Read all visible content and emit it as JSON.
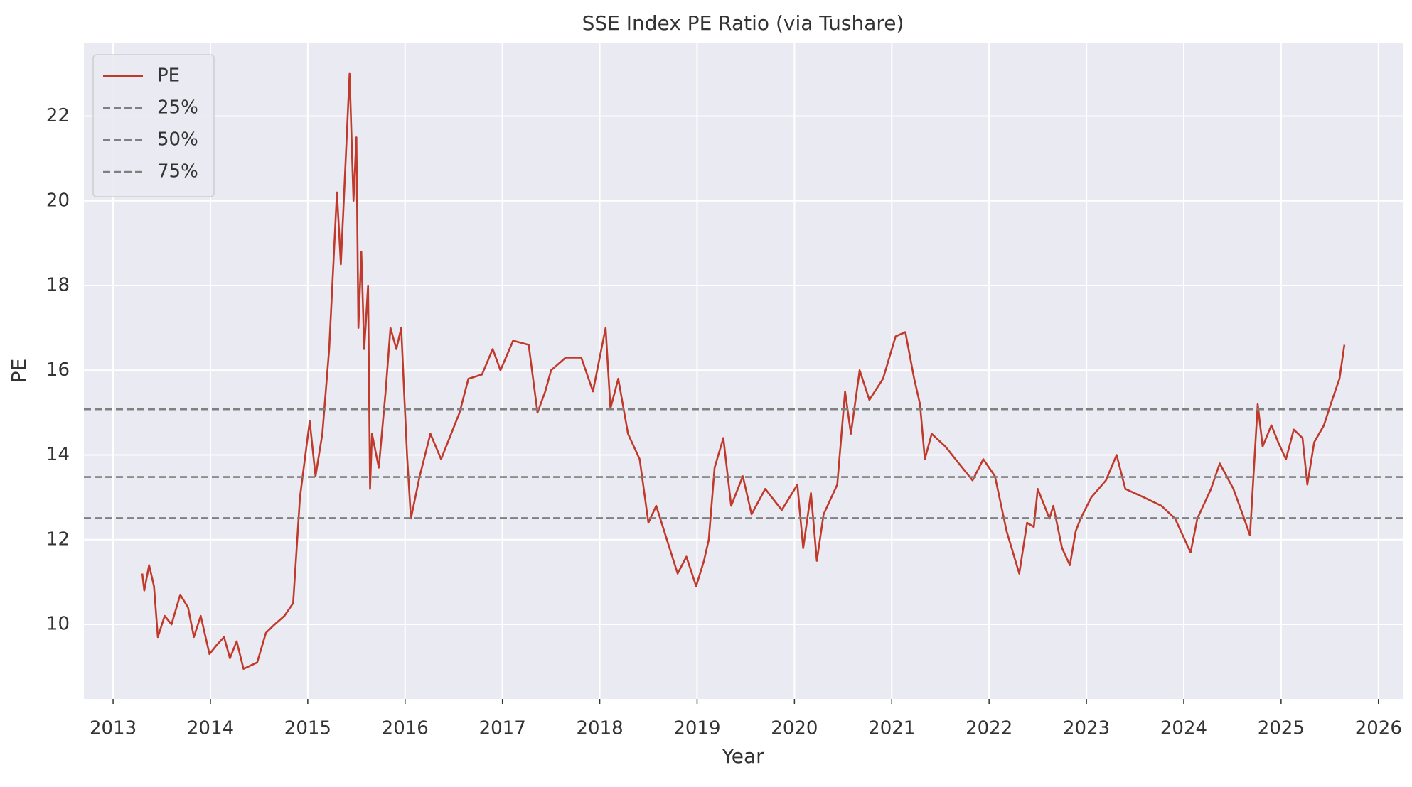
{
  "chart_data": {
    "type": "line",
    "title": "SSE Index PE Ratio (via Tushare)",
    "x_label": "Year",
    "y_label": "PE",
    "x": [
      2013.3,
      2013.32,
      2013.37,
      2013.42,
      2013.46,
      2013.53,
      2013.6,
      2013.69,
      2013.77,
      2013.83,
      2013.9,
      2013.99,
      2014.06,
      2014.14,
      2014.2,
      2014.27,
      2014.34,
      2014.48,
      2014.57,
      2014.66,
      2014.76,
      2014.85,
      2014.92,
      2015.02,
      2015.08,
      2015.15,
      2015.22,
      2015.3,
      2015.34,
      2015.39,
      2015.43,
      2015.47,
      2015.5,
      2015.52,
      2015.55,
      2015.58,
      2015.62,
      2015.64,
      2015.66,
      2015.73,
      2015.8,
      2015.85,
      2015.91,
      2015.96,
      2016.02,
      2016.06,
      2016.15,
      2016.26,
      2016.37,
      2016.56,
      2016.65,
      2016.79,
      2016.9,
      2016.98,
      2017.11,
      2017.27,
      2017.36,
      2017.44,
      2017.5,
      2017.65,
      2017.81,
      2017.93,
      2018.06,
      2018.11,
      2018.19,
      2018.29,
      2018.41,
      2018.5,
      2018.58,
      2018.69,
      2018.8,
      2018.89,
      2018.99,
      2019.07,
      2019.12,
      2019.18,
      2019.27,
      2019.35,
      2019.47,
      2019.56,
      2019.7,
      2019.87,
      2020.03,
      2020.09,
      2020.17,
      2020.23,
      2020.3,
      2020.44,
      2020.52,
      2020.58,
      2020.67,
      2020.77,
      2020.91,
      2021.04,
      2021.14,
      2021.23,
      2021.29,
      2021.34,
      2021.41,
      2021.55,
      2021.69,
      2021.83,
      2021.94,
      2022.06,
      2022.18,
      2022.31,
      2022.39,
      2022.46,
      2022.5,
      2022.62,
      2022.66,
      2022.75,
      2022.83,
      2022.89,
      2022.94,
      2023.05,
      2023.2,
      2023.31,
      2023.4,
      2023.59,
      2023.77,
      2023.91,
      2024.07,
      2024.14,
      2024.28,
      2024.37,
      2024.51,
      2024.62,
      2024.68,
      2024.76,
      2024.81,
      2024.9,
      2024.97,
      2025.05,
      2025.13,
      2025.22,
      2025.27,
      2025.34,
      2025.44,
      2025.51,
      2025.6,
      2025.65
    ],
    "series": [
      {
        "name": "PE",
        "color": "#c0392b",
        "values": [
          11.2,
          10.8,
          11.4,
          10.9,
          9.7,
          10.2,
          10.0,
          10.7,
          10.4,
          9.7,
          10.2,
          9.3,
          9.5,
          9.7,
          9.2,
          9.6,
          8.95,
          9.1,
          9.8,
          10.0,
          10.2,
          10.5,
          13.0,
          14.8,
          13.5,
          14.5,
          16.5,
          20.2,
          18.5,
          21.0,
          23.0,
          20.0,
          21.5,
          17.0,
          18.8,
          16.5,
          18.0,
          13.2,
          14.5,
          13.7,
          15.5,
          17.0,
          16.5,
          17.0,
          14.0,
          12.5,
          13.5,
          14.5,
          13.9,
          15.0,
          15.8,
          15.9,
          16.5,
          16.0,
          16.7,
          16.6,
          15.0,
          15.5,
          16.0,
          16.3,
          16.3,
          15.5,
          17.0,
          15.1,
          15.8,
          14.5,
          13.9,
          12.4,
          12.8,
          12.0,
          11.2,
          11.6,
          10.9,
          11.5,
          12.0,
          13.7,
          14.4,
          12.8,
          13.5,
          12.6,
          13.2,
          12.7,
          13.3,
          11.8,
          13.1,
          11.5,
          12.6,
          13.3,
          15.5,
          14.5,
          16.0,
          15.3,
          15.8,
          16.8,
          16.9,
          15.8,
          15.2,
          13.9,
          14.5,
          14.2,
          13.8,
          13.4,
          13.9,
          13.5,
          12.2,
          11.2,
          12.4,
          12.3,
          13.2,
          12.5,
          12.8,
          11.8,
          11.4,
          12.2,
          12.5,
          13.0,
          13.4,
          14.0,
          13.2,
          13.0,
          12.8,
          12.5,
          11.7,
          12.5,
          13.2,
          13.8,
          13.2,
          12.5,
          12.1,
          15.2,
          14.2,
          14.7,
          14.3,
          13.9,
          14.6,
          14.4,
          13.3,
          14.3,
          14.7,
          15.2,
          15.8,
          16.6
        ]
      }
    ],
    "hlines": [
      {
        "name": "25%",
        "value": 12.51,
        "color": "#808080"
      },
      {
        "name": "50%",
        "value": 13.48,
        "color": "#808080"
      },
      {
        "name": "75%",
        "value": 15.08,
        "color": "#808080"
      }
    ],
    "xlim": [
      2012.7,
      2026.25
    ],
    "xticks": [
      2013,
      2014,
      2015,
      2016,
      2017,
      2018,
      2019,
      2020,
      2021,
      2022,
      2023,
      2024,
      2025,
      2026
    ],
    "ylim": [
      8.24,
      23.72
    ],
    "yticks": [
      10,
      12,
      14,
      16,
      18,
      20,
      22
    ],
    "grid": true,
    "legend": "upper left"
  }
}
